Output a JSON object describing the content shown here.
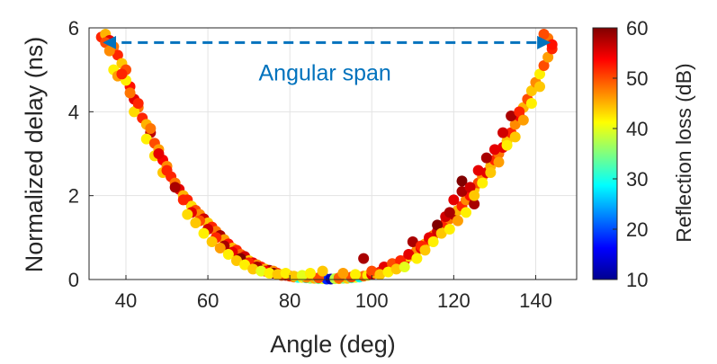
{
  "chart_data": {
    "type": "scatter",
    "title": "",
    "xlabel": "Angle (deg)",
    "ylabel": "Normalized delay (ns)",
    "xlim": [
      31,
      150
    ],
    "ylim": [
      0,
      6
    ],
    "xticks": [
      "40",
      "60",
      "80",
      "100",
      "120",
      "140"
    ],
    "yticks": [
      "0",
      "2",
      "4",
      "6"
    ],
    "grid": true,
    "colorbar": {
      "label": "Reflection loss (dB)",
      "range": [
        10,
        60
      ],
      "ticks": [
        "10",
        "20",
        "30",
        "40",
        "50",
        "60"
      ],
      "colormap": "jet"
    },
    "annotation": {
      "text": "Angular span",
      "arrow_from": [
        35,
        5.65
      ],
      "arrow_to": [
        143,
        5.65
      ],
      "color": "#0072bd"
    },
    "series": [
      {
        "name": "measurements",
        "points": [
          [
            34,
            5.78,
            52
          ],
          [
            35,
            5.85,
            45
          ],
          [
            36,
            5.7,
            55
          ],
          [
            37,
            5.55,
            48
          ],
          [
            38,
            5.35,
            52
          ],
          [
            39,
            5.15,
            44
          ],
          [
            40,
            5.0,
            50
          ],
          [
            37,
            5.0,
            42
          ],
          [
            38,
            4.85,
            46
          ],
          [
            41,
            4.6,
            53
          ],
          [
            40,
            4.75,
            42
          ],
          [
            42,
            4.3,
            55
          ],
          [
            43,
            4.1,
            48
          ],
          [
            42,
            4.0,
            43
          ],
          [
            44,
            3.85,
            52
          ],
          [
            45,
            3.7,
            45
          ],
          [
            46,
            3.5,
            57
          ],
          [
            45,
            3.35,
            42
          ],
          [
            47,
            3.25,
            50
          ],
          [
            48,
            3.1,
            46
          ],
          [
            47,
            2.95,
            43
          ],
          [
            49,
            2.85,
            54
          ],
          [
            50,
            2.7,
            47
          ],
          [
            49,
            2.55,
            44
          ],
          [
            51,
            2.45,
            52
          ],
          [
            52,
            2.3,
            48
          ],
          [
            53,
            2.15,
            55
          ],
          [
            54,
            2.0,
            45
          ],
          [
            55,
            1.9,
            52
          ],
          [
            56,
            1.75,
            43
          ],
          [
            57,
            1.65,
            50
          ],
          [
            58,
            1.55,
            47
          ],
          [
            59,
            1.45,
            56
          ],
          [
            60,
            1.35,
            44
          ],
          [
            61,
            1.25,
            52
          ],
          [
            62,
            1.15,
            48
          ],
          [
            63,
            1.05,
            58
          ],
          [
            64,
            0.95,
            46
          ],
          [
            65,
            0.85,
            53
          ],
          [
            66,
            0.75,
            45
          ],
          [
            67,
            0.7,
            52
          ],
          [
            68,
            0.6,
            49
          ],
          [
            69,
            0.55,
            56
          ],
          [
            70,
            0.45,
            44
          ],
          [
            71,
            0.4,
            55
          ],
          [
            72,
            0.35,
            47
          ],
          [
            73,
            0.3,
            52
          ],
          [
            74,
            0.25,
            45
          ],
          [
            75,
            0.22,
            58
          ],
          [
            76,
            0.2,
            47
          ],
          [
            77,
            0.15,
            52
          ],
          [
            78,
            0.12,
            42
          ],
          [
            79,
            0.1,
            55
          ],
          [
            80,
            0.08,
            38
          ],
          [
            81,
            0.06,
            48
          ],
          [
            82,
            0.05,
            30
          ],
          [
            83,
            0.05,
            42
          ],
          [
            84,
            0.04,
            28
          ],
          [
            85,
            0.03,
            36
          ],
          [
            86,
            0.03,
            45
          ],
          [
            87,
            0.02,
            34
          ],
          [
            88,
            0.02,
            40
          ],
          [
            89,
            0.01,
            18
          ],
          [
            90,
            0.01,
            12
          ],
          [
            91,
            0.02,
            38
          ],
          [
            92,
            0.02,
            46
          ],
          [
            93,
            0.03,
            35
          ],
          [
            94,
            0.03,
            44
          ],
          [
            95,
            0.04,
            32
          ],
          [
            96,
            0.05,
            40
          ],
          [
            97,
            0.06,
            30
          ],
          [
            98,
            0.08,
            48
          ],
          [
            99,
            0.1,
            42
          ],
          [
            100,
            0.12,
            55
          ],
          [
            101,
            0.15,
            45
          ],
          [
            102,
            0.18,
            52
          ],
          [
            103,
            0.22,
            47
          ],
          [
            104,
            0.25,
            57
          ],
          [
            105,
            0.3,
            45
          ],
          [
            106,
            0.35,
            52
          ],
          [
            107,
            0.4,
            48
          ],
          [
            108,
            0.45,
            55
          ],
          [
            109,
            0.55,
            44
          ],
          [
            110,
            0.6,
            52
          ],
          [
            111,
            0.7,
            47
          ],
          [
            112,
            0.75,
            55
          ],
          [
            113,
            0.85,
            45
          ],
          [
            114,
            0.95,
            52
          ],
          [
            115,
            1.05,
            48
          ],
          [
            116,
            1.15,
            56
          ],
          [
            117,
            1.25,
            44
          ],
          [
            118,
            1.35,
            52
          ],
          [
            119,
            1.45,
            48
          ],
          [
            120,
            1.55,
            57
          ],
          [
            121,
            1.65,
            45
          ],
          [
            122,
            1.75,
            52
          ],
          [
            123,
            1.9,
            47
          ],
          [
            124,
            2.0,
            53
          ],
          [
            125,
            2.15,
            44
          ],
          [
            126,
            2.3,
            50
          ],
          [
            127,
            2.45,
            47
          ],
          [
            128,
            2.55,
            55
          ],
          [
            129,
            2.7,
            45
          ],
          [
            130,
            2.85,
            52
          ],
          [
            131,
            3.0,
            48
          ],
          [
            132,
            3.15,
            55
          ],
          [
            133,
            3.3,
            44
          ],
          [
            134,
            3.5,
            52
          ],
          [
            135,
            3.7,
            47
          ],
          [
            136,
            3.9,
            54
          ],
          [
            137,
            4.1,
            45
          ],
          [
            138,
            4.3,
            50
          ],
          [
            139,
            4.5,
            44
          ],
          [
            140,
            4.7,
            47
          ],
          [
            141,
            4.9,
            42
          ],
          [
            142,
            5.1,
            50
          ],
          [
            143,
            5.3,
            46
          ],
          [
            144,
            5.5,
            52
          ],
          [
            143,
            5.75,
            48
          ],
          [
            142,
            5.85,
            50
          ],
          [
            144,
            5.6,
            53
          ],
          [
            35,
            5.65,
            50
          ],
          [
            36,
            5.45,
            47
          ],
          [
            39,
            4.9,
            52
          ],
          [
            41,
            4.45,
            48
          ],
          [
            43,
            4.2,
            52
          ],
          [
            46,
            3.6,
            48
          ],
          [
            48,
            3.0,
            55
          ],
          [
            50,
            2.6,
            52
          ],
          [
            52,
            2.2,
            58
          ],
          [
            54,
            1.9,
            52
          ],
          [
            56,
            1.6,
            55
          ],
          [
            58,
            1.4,
            50
          ],
          [
            60,
            1.2,
            56
          ],
          [
            62,
            1.0,
            52
          ],
          [
            64,
            0.8,
            58
          ],
          [
            66,
            0.65,
            55
          ],
          [
            68,
            0.5,
            60
          ],
          [
            70,
            0.4,
            52
          ],
          [
            72,
            0.3,
            58
          ],
          [
            74,
            0.2,
            54
          ],
          [
            76,
            0.15,
            60
          ],
          [
            78,
            0.1,
            50
          ],
          [
            80,
            0.08,
            52
          ],
          [
            84,
            0.05,
            47
          ],
          [
            87,
            0.04,
            50
          ],
          [
            92,
            0.04,
            49
          ],
          [
            95,
            0.06,
            50
          ],
          [
            98,
            0.5,
            58
          ],
          [
            100,
            0.2,
            50
          ],
          [
            103,
            0.3,
            55
          ],
          [
            105,
            0.38,
            50
          ],
          [
            107,
            0.45,
            52
          ],
          [
            109,
            0.6,
            55
          ],
          [
            110,
            0.9,
            58
          ],
          [
            112,
            0.8,
            52
          ],
          [
            114,
            1.0,
            55
          ],
          [
            116,
            1.3,
            60
          ],
          [
            118,
            1.5,
            56
          ],
          [
            119,
            1.6,
            58
          ],
          [
            120,
            1.9,
            55
          ],
          [
            122,
            2.1,
            58
          ],
          [
            122,
            2.35,
            60
          ],
          [
            124,
            2.2,
            56
          ],
          [
            125,
            1.8,
            58
          ],
          [
            126,
            2.6,
            55
          ],
          [
            128,
            2.9,
            58
          ],
          [
            130,
            3.1,
            55
          ],
          [
            132,
            3.5,
            56
          ],
          [
            134,
            3.9,
            58
          ],
          [
            136,
            4.0,
            52
          ],
          [
            55,
            1.55,
            43
          ],
          [
            57,
            1.35,
            44
          ],
          [
            59,
            1.1,
            42
          ],
          [
            61,
            0.9,
            44
          ],
          [
            63,
            0.75,
            46
          ],
          [
            65,
            0.6,
            42
          ],
          [
            67,
            0.45,
            44
          ],
          [
            69,
            0.35,
            42
          ],
          [
            71,
            0.25,
            44
          ],
          [
            73,
            0.2,
            40
          ],
          [
            75,
            0.15,
            42
          ],
          [
            77,
            0.12,
            44
          ],
          [
            79,
            0.15,
            42
          ],
          [
            81,
            0.08,
            44
          ],
          [
            83,
            0.1,
            40
          ],
          [
            85,
            0.15,
            42
          ],
          [
            88,
            0.2,
            44
          ],
          [
            93,
            0.15,
            46
          ],
          [
            96,
            0.12,
            42
          ],
          [
            102,
            0.12,
            44
          ],
          [
            104,
            0.18,
            42
          ],
          [
            106,
            0.25,
            44
          ],
          [
            108,
            0.3,
            40
          ],
          [
            111,
            0.5,
            42
          ],
          [
            113,
            0.7,
            44
          ],
          [
            115,
            0.9,
            42
          ],
          [
            117,
            1.1,
            44
          ],
          [
            119,
            1.2,
            42
          ],
          [
            121,
            1.4,
            46
          ],
          [
            123,
            1.6,
            42
          ],
          [
            125,
            2.0,
            44
          ],
          [
            127,
            2.3,
            42
          ],
          [
            129,
            2.55,
            44
          ],
          [
            131,
            2.8,
            46
          ],
          [
            133,
            3.2,
            42
          ],
          [
            135,
            3.4,
            44
          ],
          [
            137,
            3.8,
            46
          ],
          [
            139,
            4.2,
            42
          ],
          [
            141,
            4.6,
            44
          ]
        ]
      }
    ]
  }
}
